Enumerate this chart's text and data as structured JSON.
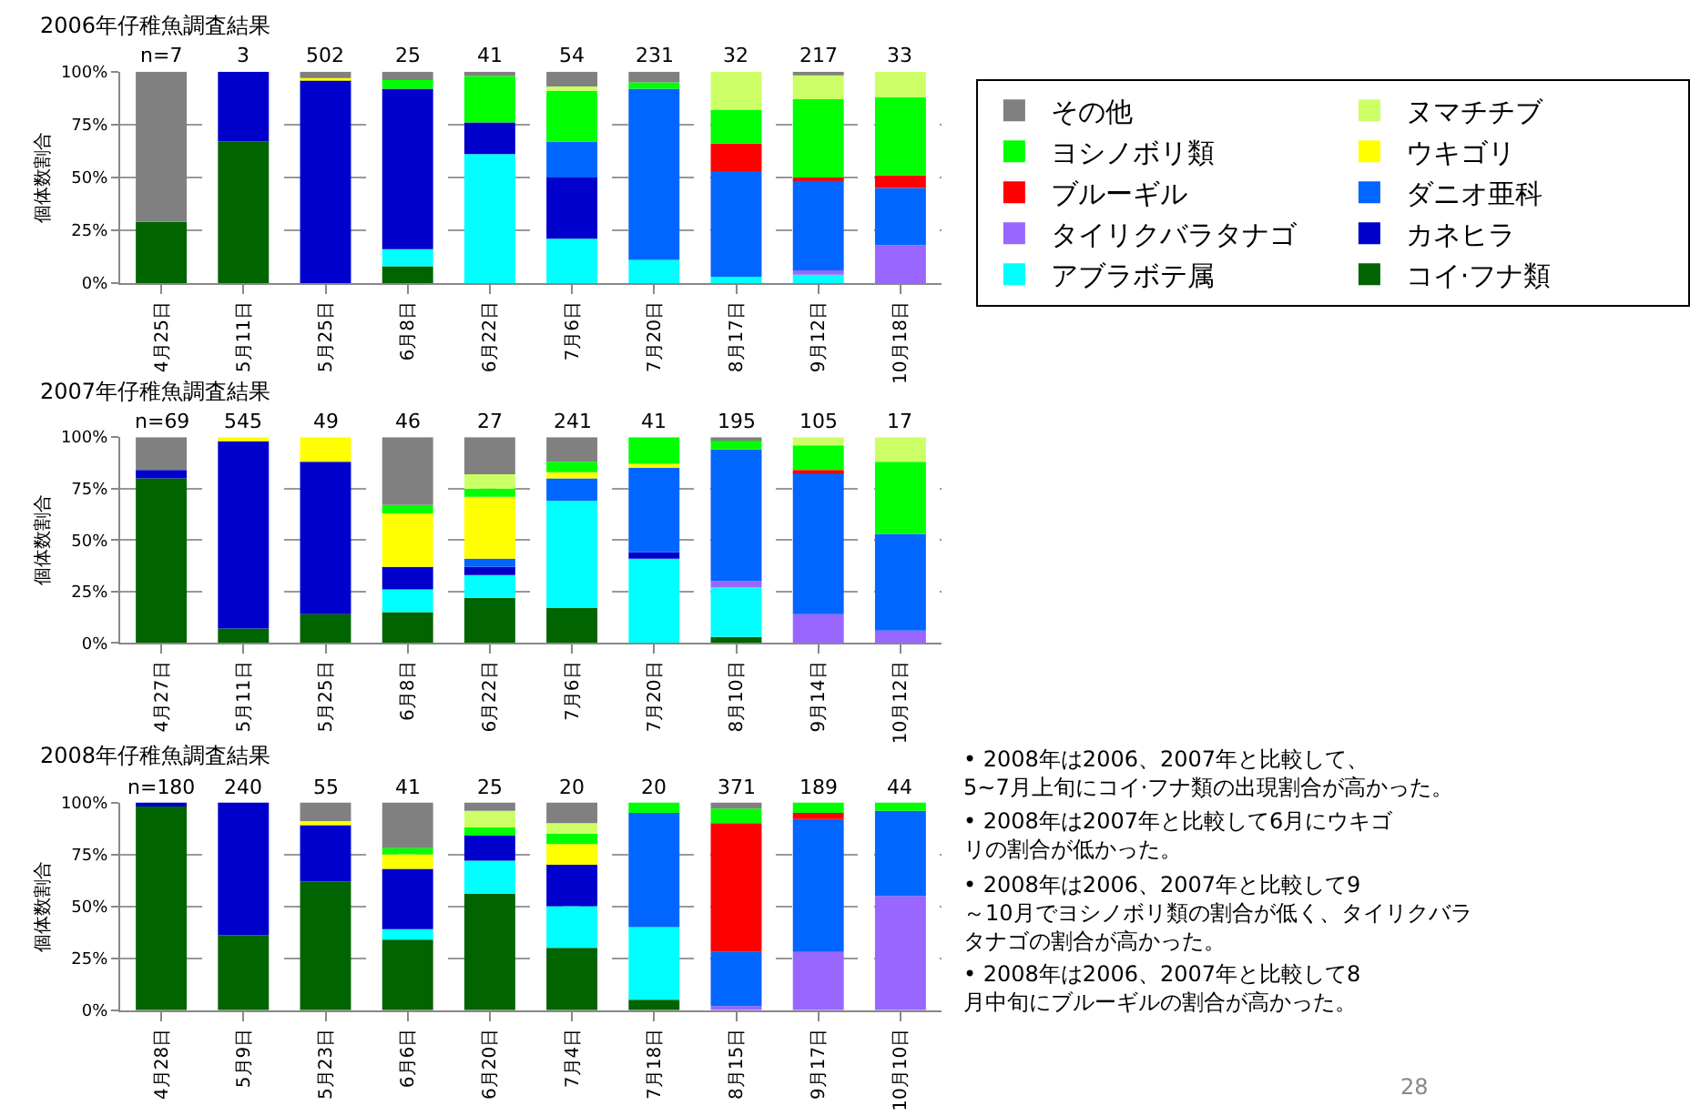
{
  "chart_data": [
    {
      "type": "bar",
      "stacked": true,
      "title": "2006年仔稚魚調査結果",
      "ylabel": "個体数割合",
      "grid": "y",
      "legend": "right",
      "categories": [
        "4月25日",
        "5月11日",
        "5月25日",
        "6月8日",
        "6月22日",
        "7月6日",
        "7月20日",
        "8月17日",
        "9月12日",
        "10月18日"
      ],
      "ylim": [
        0,
        100
      ],
      "yticks": [
        {
          "value": 0,
          "label": "0%"
        },
        {
          "value": 25,
          "label": "25%"
        },
        {
          "value": 50,
          "label": "50%"
        },
        {
          "value": 75,
          "label": "75%"
        },
        {
          "value": 100,
          "label": "100%"
        }
      ],
      "series": [
        {
          "name": "コイ·フナ類",
          "color": "#006400",
          "values": [
            29,
            67,
            null,
            8,
            null,
            null,
            null,
            null,
            null,
            null
          ]
        },
        {
          "name": "アブラボテ属",
          "color": "#00ffff",
          "values": [
            null,
            null,
            null,
            8,
            61,
            21,
            11,
            3,
            4,
            null
          ]
        },
        {
          "name": "カネヒラ",
          "color": "#0000cc",
          "values": [
            null,
            33,
            96,
            76,
            15,
            29,
            null,
            null,
            null,
            null
          ]
        },
        {
          "name": "タイリクバラタナゴ",
          "color": "#9966ff",
          "values": [
            null,
            null,
            null,
            null,
            null,
            null,
            null,
            null,
            2,
            18
          ]
        },
        {
          "name": "ダニオ亜科",
          "color": "#0066ff",
          "values": [
            null,
            null,
            null,
            null,
            null,
            17,
            81,
            50,
            43,
            27
          ]
        },
        {
          "name": "ブルーギル",
          "color": "#ff0000",
          "values": [
            null,
            null,
            null,
            null,
            null,
            null,
            null,
            13,
            1,
            6
          ]
        },
        {
          "name": "ウキゴリ",
          "color": "#ffff00",
          "values": [
            null,
            null,
            1,
            null,
            null,
            null,
            null,
            null,
            null,
            null
          ]
        },
        {
          "name": "ヨシノボリ類",
          "color": "#00ff00",
          "values": [
            null,
            null,
            null,
            4,
            22,
            24,
            3,
            16,
            37,
            37
          ]
        },
        {
          "name": "ヌマチチブ",
          "color": "#ccff66",
          "values": [
            null,
            null,
            null,
            null,
            null,
            2,
            null,
            18,
            12,
            12
          ]
        },
        {
          "name": "その他",
          "color": "#808080",
          "values": [
            71,
            null,
            3,
            4,
            2,
            7,
            5,
            null,
            1,
            null
          ]
        }
      ],
      "annotations": [
        {
          "text": "n=7",
          "x": "4月25日",
          "y": 100
        },
        {
          "text": "3",
          "x": "5月11日",
          "y": 100
        },
        {
          "text": "502",
          "x": "5月25日",
          "y": 100
        },
        {
          "text": "25",
          "x": "6月8日",
          "y": 100
        },
        {
          "text": "41",
          "x": "6月22日",
          "y": 100
        },
        {
          "text": "54",
          "x": "7月6日",
          "y": 100
        },
        {
          "text": "231",
          "x": "7月20日",
          "y": 100
        },
        {
          "text": "32",
          "x": "8月17日",
          "y": 100
        },
        {
          "text": "217",
          "x": "9月12日",
          "y": 100
        },
        {
          "text": "33",
          "x": "10月18日",
          "y": 100
        }
      ]
    },
    {
      "type": "bar",
      "stacked": true,
      "title": "2007年仔稚魚調査結果",
      "ylabel": "個体数割合",
      "grid": "y",
      "categories": [
        "4月27日",
        "5月11日",
        "5月25日",
        "6月8日",
        "6月22日",
        "7月6日",
        "7月20日",
        "8月10日",
        "9月14日",
        "10月12日"
      ],
      "ylim": [
        0,
        100
      ],
      "yticks": [
        {
          "value": 0,
          "label": "0%"
        },
        {
          "value": 25,
          "label": "25%"
        },
        {
          "value": 50,
          "label": "50%"
        },
        {
          "value": 75,
          "label": "75%"
        },
        {
          "value": 100,
          "label": "100%"
        }
      ],
      "series": [
        {
          "color": "#006400",
          "values": [
            80,
            7,
            14,
            15,
            22,
            17,
            null,
            3,
            null,
            null
          ]
        },
        {
          "color": "#00ffff",
          "values": [
            null,
            null,
            null,
            11,
            11,
            52,
            41,
            24,
            null,
            null
          ]
        },
        {
          "color": "#0000cc",
          "values": [
            4,
            91,
            74,
            11,
            4,
            null,
            3,
            null,
            null,
            null
          ]
        },
        {
          "color": "#9966ff",
          "values": [
            null,
            null,
            null,
            null,
            null,
            null,
            null,
            3,
            14,
            6
          ]
        },
        {
          "color": "#0066ff",
          "values": [
            null,
            null,
            null,
            null,
            4,
            11,
            41,
            64,
            69,
            47
          ]
        },
        {
          "color": "#ff0000",
          "values": [
            null,
            null,
            null,
            null,
            null,
            null,
            null,
            null,
            1,
            null
          ]
        },
        {
          "color": "#ffff00",
          "values": [
            null,
            2,
            12,
            26,
            30,
            3,
            2,
            null,
            null,
            null
          ]
        },
        {
          "color": "#00ff00",
          "values": [
            null,
            null,
            null,
            4,
            4,
            5,
            13,
            5,
            12,
            35
          ]
        },
        {
          "color": "#ccff66",
          "values": [
            null,
            null,
            null,
            null,
            7,
            null,
            null,
            null,
            4,
            12
          ]
        },
        {
          "color": "#808080",
          "values": [
            16,
            null,
            null,
            33,
            18,
            12,
            null,
            1,
            null,
            null
          ]
        }
      ],
      "annotations": [
        {
          "text": "n=69",
          "x": "4月27日",
          "y": 100
        },
        {
          "text": "545",
          "x": "5月11日",
          "y": 100
        },
        {
          "text": "49",
          "x": "5月25日",
          "y": 100
        },
        {
          "text": "46",
          "x": "6月8日",
          "y": 100
        },
        {
          "text": "27",
          "x": "6月22日",
          "y": 100
        },
        {
          "text": "241",
          "x": "7月6日",
          "y": 100
        },
        {
          "text": "41",
          "x": "7月20日",
          "y": 100
        },
        {
          "text": "195",
          "x": "8月10日",
          "y": 100
        },
        {
          "text": "105",
          "x": "9月14日",
          "y": 100
        },
        {
          "text": "17",
          "x": "10月12日",
          "y": 100
        }
      ]
    },
    {
      "type": "bar",
      "stacked": true,
      "title": "2008年仔稚魚調査結果",
      "ylabel": "個体数割合",
      "grid": "y",
      "categories": [
        "4月28日",
        "5月9日",
        "5月23日",
        "6月6日",
        "6月20日",
        "7月4日",
        "7月18日",
        "8月15日",
        "9月17日",
        "10月10日"
      ],
      "ylim": [
        0,
        100
      ],
      "yticks": [
        {
          "value": 0,
          "label": "0%"
        },
        {
          "value": 25,
          "label": "25%"
        },
        {
          "value": 50,
          "label": "50%"
        },
        {
          "value": 75,
          "label": "75%"
        },
        {
          "value": 100,
          "label": "100%"
        }
      ],
      "series": [
        {
          "color": "#006400",
          "values": [
            98,
            36,
            62,
            34,
            56,
            30,
            5,
            null,
            null,
            null
          ]
        },
        {
          "color": "#00ffff",
          "values": [
            null,
            null,
            null,
            5,
            16,
            20,
            35,
            null,
            null,
            null
          ]
        },
        {
          "color": "#0000cc",
          "values": [
            2,
            64,
            27,
            29,
            12,
            20,
            null,
            null,
            null,
            null
          ]
        },
        {
          "color": "#9966ff",
          "values": [
            null,
            null,
            null,
            null,
            null,
            null,
            null,
            2,
            28,
            55
          ]
        },
        {
          "color": "#0066ff",
          "values": [
            null,
            null,
            null,
            null,
            null,
            null,
            55,
            26,
            64,
            41
          ]
        },
        {
          "color": "#ff0000",
          "values": [
            null,
            null,
            null,
            null,
            null,
            null,
            null,
            62,
            3,
            null
          ]
        },
        {
          "color": "#ffff00",
          "values": [
            null,
            null,
            2,
            7,
            null,
            10,
            null,
            null,
            null,
            null
          ]
        },
        {
          "color": "#00ff00",
          "values": [
            null,
            null,
            null,
            3,
            4,
            5,
            5,
            7,
            5,
            4
          ]
        },
        {
          "color": "#ccff66",
          "values": [
            null,
            null,
            null,
            null,
            8,
            5,
            null,
            null,
            null,
            null
          ]
        },
        {
          "color": "#808080",
          "values": [
            null,
            null,
            9,
            22,
            4,
            10,
            null,
            3,
            null,
            null
          ]
        }
      ],
      "annotations": [
        {
          "text": "n=180",
          "x": "4月28日",
          "y": 100
        },
        {
          "text": "240",
          "x": "5月9日",
          "y": 100
        },
        {
          "text": "55",
          "x": "5月23日",
          "y": 100
        },
        {
          "text": "41",
          "x": "6月6日",
          "y": 100
        },
        {
          "text": "25",
          "x": "6月20日",
          "y": 100
        },
        {
          "text": "20",
          "x": "7月4日",
          "y": 100
        },
        {
          "text": "20",
          "x": "7月18日",
          "y": 100
        },
        {
          "text": "371",
          "x": "8月15日",
          "y": 100
        },
        {
          "text": "189",
          "x": "9月17日",
          "y": 100
        },
        {
          "text": "44",
          "x": "10月10日",
          "y": 100
        }
      ]
    },
    {
      "type": "other",
      "annotations": [
        "• 2008年は2006、2007年と比較して、5~7月上旬にコイ·フナ類の出現割合が高かった。",
        "• 2008年は2007年と比較して6月にウキゴリの割合が低かった。",
        "• 2008年は2006、2007年と比較して9～10月でヨシノボリ類の割合が低く、タイリクバラタナゴの割合が高かった。",
        "• 2008年は2006、2007年と比較して8月中旬にブルーギルの割合が高かった。",
        "28"
      ]
    }
  ]
}
